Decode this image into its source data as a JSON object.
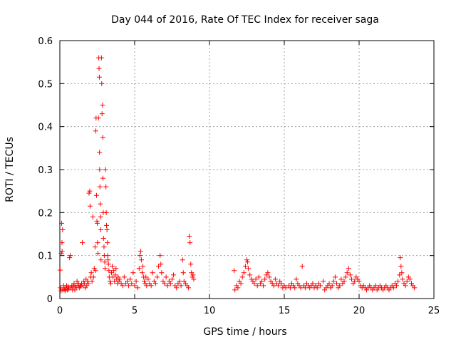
{
  "chart_data": {
    "type": "scatter",
    "title": "Day 044 of 2016, Rate Of TEC Index for receiver saga",
    "xlabel": "GPS time / hours",
    "ylabel": "ROTI / TECUs",
    "xlim": [
      0,
      25
    ],
    "ylim": [
      0,
      0.6
    ],
    "xticks": [
      0,
      5,
      10,
      15,
      20,
      25
    ],
    "yticks": [
      0,
      0.1,
      0.2,
      0.3,
      0.4,
      0.5,
      0.6
    ],
    "xtick_labels": [
      "0",
      "5",
      "10",
      "15",
      "20",
      "25"
    ],
    "ytick_labels": [
      "0",
      "0.1",
      "0.2",
      "0.3",
      "0.4",
      "0.5",
      "0.6"
    ],
    "grid": true,
    "marker": "+",
    "color": "#ff0000",
    "series": [
      {
        "name": "ROTI",
        "points": [
          [
            0.02,
            0.066
          ],
          [
            0.05,
            0.025
          ],
          [
            0.08,
            0.018
          ],
          [
            0.1,
            0.105
          ],
          [
            0.12,
            0.175
          ],
          [
            0.14,
            0.13
          ],
          [
            0.15,
            0.11
          ],
          [
            0.18,
            0.16
          ],
          [
            0.2,
            0.02
          ],
          [
            0.25,
            0.03
          ],
          [
            0.3,
            0.022
          ],
          [
            0.35,
            0.018
          ],
          [
            0.4,
            0.025
          ],
          [
            0.45,
            0.03
          ],
          [
            0.5,
            0.02
          ],
          [
            0.55,
            0.028
          ],
          [
            0.6,
            0.022
          ],
          [
            0.65,
            0.095
          ],
          [
            0.7,
            0.1
          ],
          [
            0.75,
            0.025
          ],
          [
            0.8,
            0.03
          ],
          [
            0.85,
            0.02
          ],
          [
            0.9,
            0.028
          ],
          [
            0.95,
            0.035
          ],
          [
            1.0,
            0.02
          ],
          [
            1.05,
            0.03
          ],
          [
            1.1,
            0.025
          ],
          [
            1.15,
            0.04
          ],
          [
            1.2,
            0.03
          ],
          [
            1.25,
            0.035
          ],
          [
            1.3,
            0.025
          ],
          [
            1.35,
            0.03
          ],
          [
            1.4,
            0.028
          ],
          [
            1.45,
            0.035
          ],
          [
            1.5,
            0.13
          ],
          [
            1.55,
            0.03
          ],
          [
            1.6,
            0.04
          ],
          [
            1.65,
            0.035
          ],
          [
            1.7,
            0.025
          ],
          [
            1.75,
            0.045
          ],
          [
            1.8,
            0.03
          ],
          [
            1.85,
            0.04
          ],
          [
            1.9,
            0.035
          ],
          [
            1.95,
            0.245
          ],
          [
            2.0,
            0.25
          ],
          [
            2.02,
            0.215
          ],
          [
            2.05,
            0.05
          ],
          [
            2.1,
            0.06
          ],
          [
            2.15,
            0.04
          ],
          [
            2.2,
            0.19
          ],
          [
            2.25,
            0.05
          ],
          [
            2.3,
            0.07
          ],
          [
            2.35,
            0.12
          ],
          [
            2.38,
            0.065
          ],
          [
            2.4,
            0.39
          ],
          [
            2.42,
            0.42
          ],
          [
            2.45,
            0.24
          ],
          [
            2.48,
            0.18
          ],
          [
            2.5,
            0.175
          ],
          [
            2.52,
            0.13
          ],
          [
            2.55,
            0.105
          ],
          [
            2.58,
            0.42
          ],
          [
            2.6,
            0.56
          ],
          [
            2.62,
            0.535
          ],
          [
            2.64,
            0.515
          ],
          [
            2.65,
            0.34
          ],
          [
            2.66,
            0.3
          ],
          [
            2.68,
            0.26
          ],
          [
            2.7,
            0.22
          ],
          [
            2.72,
            0.19
          ],
          [
            2.74,
            0.16
          ],
          [
            2.75,
            0.09
          ],
          [
            2.78,
            0.56
          ],
          [
            2.8,
            0.5
          ],
          [
            2.82,
            0.43
          ],
          [
            2.85,
            0.45
          ],
          [
            2.87,
            0.375
          ],
          [
            2.88,
            0.28
          ],
          [
            2.9,
            0.2
          ],
          [
            2.92,
            0.14
          ],
          [
            2.95,
            0.12
          ],
          [
            2.97,
            0.1
          ],
          [
            3.0,
            0.085
          ],
          [
            3.02,
            0.07
          ],
          [
            3.05,
            0.3
          ],
          [
            3.08,
            0.26
          ],
          [
            3.1,
            0.2
          ],
          [
            3.12,
            0.17
          ],
          [
            3.15,
            0.16
          ],
          [
            3.18,
            0.13
          ],
          [
            3.2,
            0.1
          ],
          [
            3.22,
            0.09
          ],
          [
            3.25,
            0.08
          ],
          [
            3.28,
            0.065
          ],
          [
            3.3,
            0.05
          ],
          [
            3.35,
            0.04
          ],
          [
            3.4,
            0.035
          ],
          [
            3.45,
            0.06
          ],
          [
            3.5,
            0.075
          ],
          [
            3.55,
            0.05
          ],
          [
            3.6,
            0.065
          ],
          [
            3.65,
            0.04
          ],
          [
            3.7,
            0.055
          ],
          [
            3.75,
            0.07
          ],
          [
            3.8,
            0.045
          ],
          [
            3.85,
            0.035
          ],
          [
            3.9,
            0.05
          ],
          [
            3.95,
            0.04
          ],
          [
            4.0,
            0.045
          ],
          [
            4.1,
            0.035
          ],
          [
            4.2,
            0.03
          ],
          [
            4.3,
            0.05
          ],
          [
            4.4,
            0.035
          ],
          [
            4.5,
            0.04
          ],
          [
            4.6,
            0.03
          ],
          [
            4.7,
            0.045
          ],
          [
            4.8,
            0.035
          ],
          [
            4.9,
            0.06
          ],
          [
            5.0,
            0.03
          ],
          [
            5.1,
            0.04
          ],
          [
            5.2,
            0.025
          ],
          [
            5.3,
            0.07
          ],
          [
            5.35,
            0.1
          ],
          [
            5.4,
            0.11
          ],
          [
            5.45,
            0.09
          ],
          [
            5.5,
            0.06
          ],
          [
            5.55,
            0.075
          ],
          [
            5.6,
            0.05
          ],
          [
            5.65,
            0.04
          ],
          [
            5.7,
            0.035
          ],
          [
            5.75,
            0.05
          ],
          [
            5.8,
            0.03
          ],
          [
            5.9,
            0.045
          ],
          [
            6.0,
            0.035
          ],
          [
            6.1,
            0.03
          ],
          [
            6.2,
            0.06
          ],
          [
            6.3,
            0.04
          ],
          [
            6.4,
            0.035
          ],
          [
            6.5,
            0.05
          ],
          [
            6.6,
            0.075
          ],
          [
            6.7,
            0.1
          ],
          [
            6.75,
            0.08
          ],
          [
            6.8,
            0.06
          ],
          [
            6.9,
            0.04
          ],
          [
            7.0,
            0.035
          ],
          [
            7.1,
            0.05
          ],
          [
            7.2,
            0.03
          ],
          [
            7.3,
            0.04
          ],
          [
            7.4,
            0.035
          ],
          [
            7.5,
            0.045
          ],
          [
            7.6,
            0.055
          ],
          [
            7.7,
            0.03
          ],
          [
            7.8,
            0.025
          ],
          [
            7.9,
            0.035
          ],
          [
            8.0,
            0.04
          ],
          [
            8.1,
            0.03
          ],
          [
            8.2,
            0.09
          ],
          [
            8.25,
            0.06
          ],
          [
            8.3,
            0.04
          ],
          [
            8.4,
            0.035
          ],
          [
            8.5,
            0.03
          ],
          [
            8.6,
            0.025
          ],
          [
            8.65,
            0.145
          ],
          [
            8.7,
            0.13
          ],
          [
            8.75,
            0.08
          ],
          [
            8.8,
            0.06
          ],
          [
            8.85,
            0.05
          ],
          [
            8.9,
            0.055
          ],
          [
            8.95,
            0.045
          ],
          [
            11.65,
            0.065
          ],
          [
            11.7,
            0.02
          ],
          [
            11.8,
            0.03
          ],
          [
            11.9,
            0.025
          ],
          [
            12.0,
            0.04
          ],
          [
            12.1,
            0.035
          ],
          [
            12.2,
            0.05
          ],
          [
            12.3,
            0.06
          ],
          [
            12.4,
            0.075
          ],
          [
            12.5,
            0.09
          ],
          [
            12.55,
            0.085
          ],
          [
            12.6,
            0.07
          ],
          [
            12.7,
            0.055
          ],
          [
            12.8,
            0.045
          ],
          [
            12.9,
            0.04
          ],
          [
            13.0,
            0.035
          ],
          [
            13.1,
            0.045
          ],
          [
            13.2,
            0.03
          ],
          [
            13.3,
            0.05
          ],
          [
            13.4,
            0.035
          ],
          [
            13.5,
            0.04
          ],
          [
            13.6,
            0.03
          ],
          [
            13.7,
            0.045
          ],
          [
            13.8,
            0.055
          ],
          [
            13.9,
            0.06
          ],
          [
            14.0,
            0.05
          ],
          [
            14.1,
            0.04
          ],
          [
            14.2,
            0.035
          ],
          [
            14.3,
            0.03
          ],
          [
            14.4,
            0.045
          ],
          [
            14.5,
            0.035
          ],
          [
            14.6,
            0.03
          ],
          [
            14.7,
            0.04
          ],
          [
            14.8,
            0.035
          ],
          [
            14.9,
            0.025
          ],
          [
            15.0,
            0.03
          ],
          [
            15.1,
            0.025
          ],
          [
            15.3,
            0.03
          ],
          [
            15.4,
            0.025
          ],
          [
            15.5,
            0.035
          ],
          [
            15.6,
            0.03
          ],
          [
            15.7,
            0.025
          ],
          [
            15.8,
            0.045
          ],
          [
            15.9,
            0.035
          ],
          [
            16.0,
            0.03
          ],
          [
            16.1,
            0.025
          ],
          [
            16.2,
            0.075
          ],
          [
            16.3,
            0.03
          ],
          [
            16.4,
            0.025
          ],
          [
            16.5,
            0.035
          ],
          [
            16.6,
            0.03
          ],
          [
            16.7,
            0.025
          ],
          [
            16.8,
            0.03
          ],
          [
            16.9,
            0.035
          ],
          [
            17.0,
            0.025
          ],
          [
            17.1,
            0.03
          ],
          [
            17.2,
            0.025
          ],
          [
            17.3,
            0.035
          ],
          [
            17.4,
            0.03
          ],
          [
            17.6,
            0.04
          ],
          [
            17.7,
            0.02
          ],
          [
            17.8,
            0.025
          ],
          [
            17.9,
            0.03
          ],
          [
            18.0,
            0.035
          ],
          [
            18.1,
            0.025
          ],
          [
            18.2,
            0.03
          ],
          [
            18.3,
            0.04
          ],
          [
            18.4,
            0.05
          ],
          [
            18.5,
            0.035
          ],
          [
            18.6,
            0.025
          ],
          [
            18.7,
            0.03
          ],
          [
            18.8,
            0.045
          ],
          [
            18.9,
            0.035
          ],
          [
            19.0,
            0.04
          ],
          [
            19.1,
            0.05
          ],
          [
            19.2,
            0.06
          ],
          [
            19.3,
            0.07
          ],
          [
            19.4,
            0.055
          ],
          [
            19.5,
            0.045
          ],
          [
            19.6,
            0.035
          ],
          [
            19.7,
            0.04
          ],
          [
            19.8,
            0.05
          ],
          [
            19.9,
            0.045
          ],
          [
            20.0,
            0.04
          ],
          [
            20.1,
            0.03
          ],
          [
            20.2,
            0.025
          ],
          [
            20.3,
            0.03
          ],
          [
            20.4,
            0.025
          ],
          [
            20.5,
            0.02
          ],
          [
            20.6,
            0.025
          ],
          [
            20.7,
            0.03
          ],
          [
            20.8,
            0.025
          ],
          [
            20.9,
            0.02
          ],
          [
            21.0,
            0.025
          ],
          [
            21.1,
            0.03
          ],
          [
            21.2,
            0.02
          ],
          [
            21.3,
            0.025
          ],
          [
            21.4,
            0.03
          ],
          [
            21.5,
            0.025
          ],
          [
            21.6,
            0.02
          ],
          [
            21.7,
            0.025
          ],
          [
            21.8,
            0.03
          ],
          [
            21.9,
            0.025
          ],
          [
            22.0,
            0.02
          ],
          [
            22.1,
            0.025
          ],
          [
            22.2,
            0.03
          ],
          [
            22.3,
            0.025
          ],
          [
            22.4,
            0.035
          ],
          [
            22.5,
            0.03
          ],
          [
            22.6,
            0.04
          ],
          [
            22.7,
            0.055
          ],
          [
            22.75,
            0.095
          ],
          [
            22.8,
            0.075
          ],
          [
            22.85,
            0.06
          ],
          [
            22.9,
            0.045
          ],
          [
            23.0,
            0.035
          ],
          [
            23.1,
            0.03
          ],
          [
            23.2,
            0.04
          ],
          [
            23.3,
            0.05
          ],
          [
            23.4,
            0.045
          ],
          [
            23.5,
            0.035
          ],
          [
            23.6,
            0.03
          ],
          [
            23.7,
            0.025
          ]
        ]
      }
    ]
  }
}
